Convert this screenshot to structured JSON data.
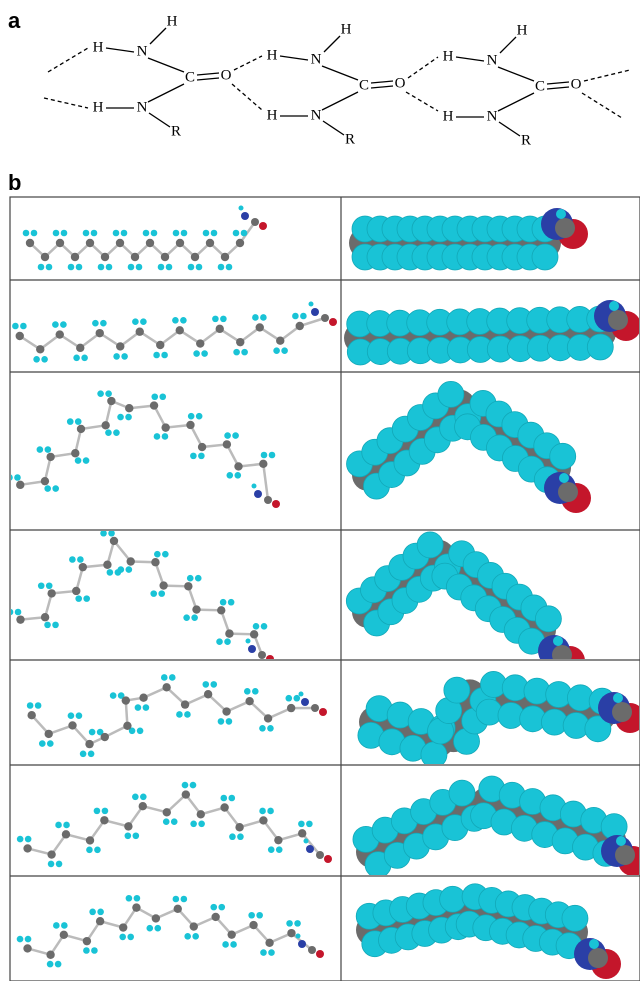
{
  "panel_a": {
    "label": "a",
    "units": [
      {
        "atoms": [
          "H",
          "H",
          "N",
          "C",
          "O",
          "H",
          "N",
          "R"
        ]
      },
      {
        "atoms": [
          "H",
          "H",
          "N",
          "C",
          "O",
          "H",
          "N",
          "R"
        ]
      },
      {
        "atoms": [
          "H",
          "H",
          "N",
          "C",
          "O",
          "H",
          "N",
          "R"
        ]
      }
    ]
  },
  "panel_b": {
    "label": "b"
  }
}
